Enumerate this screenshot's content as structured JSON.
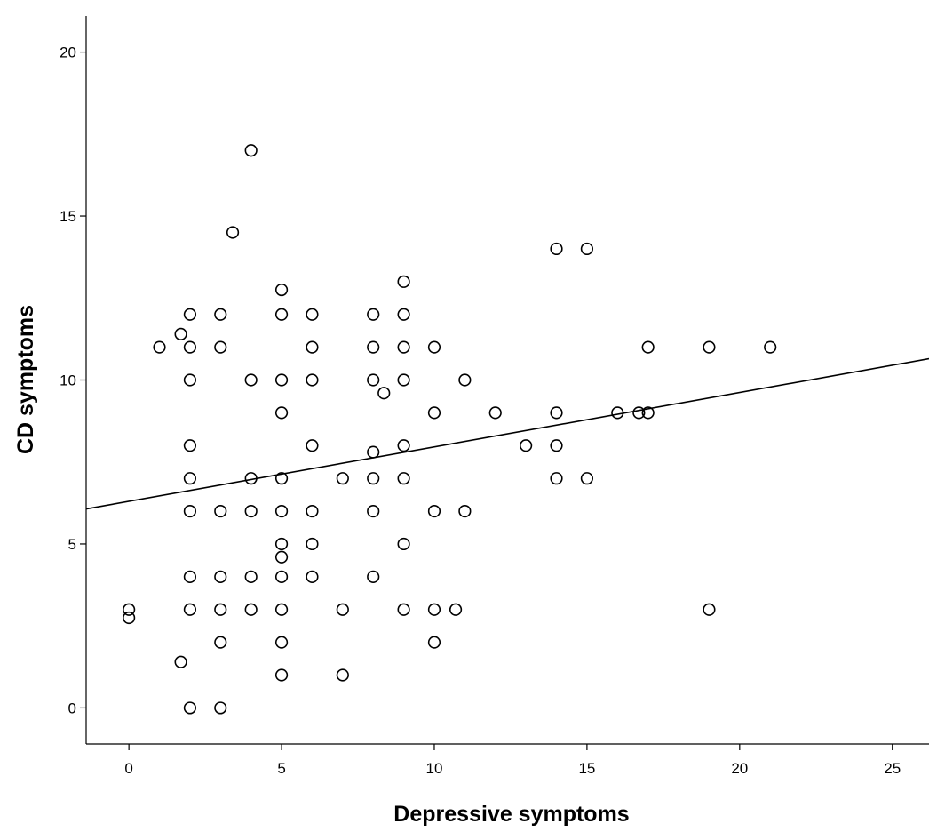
{
  "chart_data": {
    "type": "scatter",
    "title": "",
    "xlabel": "Depressive symptoms",
    "ylabel": "CD symptoms",
    "xlim": [
      -1.4,
      26.2
    ],
    "ylim": [
      -1.1,
      21.1
    ],
    "xticks": [
      0,
      5,
      10,
      15,
      20,
      25
    ],
    "yticks": [
      0,
      5,
      10,
      15,
      20
    ],
    "grid": false,
    "legend": "none",
    "marker": "open-circle",
    "marker_color": "#000000",
    "fit_line": {
      "intercept": 6.3,
      "slope": 0.166
    },
    "points": [
      {
        "x": 0,
        "y": 3
      },
      {
        "x": 0,
        "y": 2.75
      },
      {
        "x": 1,
        "y": 11
      },
      {
        "x": 1.7,
        "y": 11.4
      },
      {
        "x": 1.7,
        "y": 1.4
      },
      {
        "x": 2,
        "y": 12
      },
      {
        "x": 2,
        "y": 11
      },
      {
        "x": 2,
        "y": 10
      },
      {
        "x": 2,
        "y": 8
      },
      {
        "x": 2,
        "y": 7
      },
      {
        "x": 2,
        "y": 6
      },
      {
        "x": 2,
        "y": 4
      },
      {
        "x": 2,
        "y": 3
      },
      {
        "x": 2,
        "y": 0
      },
      {
        "x": 3,
        "y": 12
      },
      {
        "x": 3,
        "y": 11
      },
      {
        "x": 3,
        "y": 6
      },
      {
        "x": 3,
        "y": 4
      },
      {
        "x": 3,
        "y": 3
      },
      {
        "x": 3,
        "y": 2
      },
      {
        "x": 3,
        "y": 0
      },
      {
        "x": 3.4,
        "y": 14.5
      },
      {
        "x": 4,
        "y": 17
      },
      {
        "x": 4,
        "y": 10
      },
      {
        "x": 4,
        "y": 7
      },
      {
        "x": 4,
        "y": 6
      },
      {
        "x": 4,
        "y": 4
      },
      {
        "x": 4,
        "y": 3
      },
      {
        "x": 5,
        "y": 12.75
      },
      {
        "x": 5,
        "y": 12
      },
      {
        "x": 5,
        "y": 10
      },
      {
        "x": 5,
        "y": 9
      },
      {
        "x": 5,
        "y": 7
      },
      {
        "x": 5,
        "y": 6
      },
      {
        "x": 5,
        "y": 5
      },
      {
        "x": 5,
        "y": 4.6
      },
      {
        "x": 5,
        "y": 4
      },
      {
        "x": 5,
        "y": 3
      },
      {
        "x": 5,
        "y": 2
      },
      {
        "x": 5,
        "y": 1
      },
      {
        "x": 6,
        "y": 12
      },
      {
        "x": 6,
        "y": 11
      },
      {
        "x": 6,
        "y": 10
      },
      {
        "x": 6,
        "y": 8
      },
      {
        "x": 6,
        "y": 6
      },
      {
        "x": 6,
        "y": 5
      },
      {
        "x": 6,
        "y": 4
      },
      {
        "x": 7,
        "y": 7
      },
      {
        "x": 7,
        "y": 3
      },
      {
        "x": 7,
        "y": 1
      },
      {
        "x": 8,
        "y": 12
      },
      {
        "x": 8,
        "y": 11
      },
      {
        "x": 8,
        "y": 10
      },
      {
        "x": 8,
        "y": 7.8
      },
      {
        "x": 8,
        "y": 7
      },
      {
        "x": 8,
        "y": 6
      },
      {
        "x": 8,
        "y": 4
      },
      {
        "x": 8.35,
        "y": 9.6
      },
      {
        "x": 9,
        "y": 13
      },
      {
        "x": 9,
        "y": 12
      },
      {
        "x": 9,
        "y": 11
      },
      {
        "x": 9,
        "y": 10
      },
      {
        "x": 9,
        "y": 8
      },
      {
        "x": 9,
        "y": 7
      },
      {
        "x": 9,
        "y": 5
      },
      {
        "x": 9,
        "y": 3
      },
      {
        "x": 10,
        "y": 11
      },
      {
        "x": 10,
        "y": 9
      },
      {
        "x": 10,
        "y": 6
      },
      {
        "x": 10,
        "y": 3
      },
      {
        "x": 10,
        "y": 2
      },
      {
        "x": 10.7,
        "y": 3
      },
      {
        "x": 11,
        "y": 10
      },
      {
        "x": 11,
        "y": 6
      },
      {
        "x": 12,
        "y": 9
      },
      {
        "x": 13,
        "y": 8
      },
      {
        "x": 14,
        "y": 14
      },
      {
        "x": 14,
        "y": 9
      },
      {
        "x": 14,
        "y": 8
      },
      {
        "x": 14,
        "y": 7
      },
      {
        "x": 15,
        "y": 14
      },
      {
        "x": 15,
        "y": 7
      },
      {
        "x": 16,
        "y": 9
      },
      {
        "x": 16.7,
        "y": 9
      },
      {
        "x": 17,
        "y": 11
      },
      {
        "x": 17,
        "y": 9
      },
      {
        "x": 19,
        "y": 11
      },
      {
        "x": 19,
        "y": 3
      },
      {
        "x": 21,
        "y": 11
      }
    ]
  }
}
